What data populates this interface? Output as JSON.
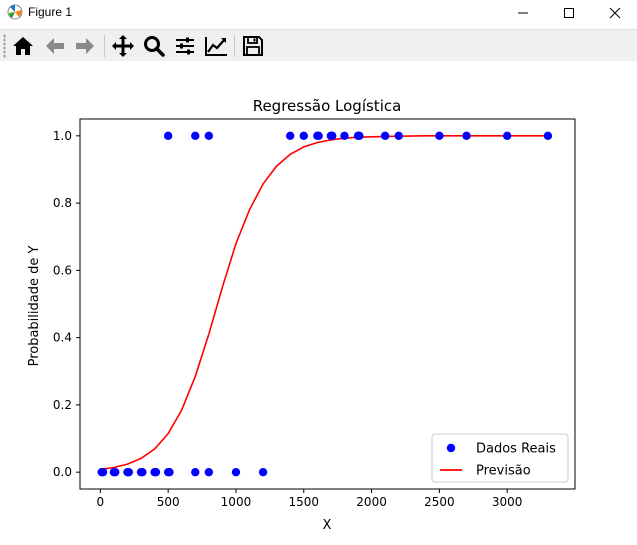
{
  "window": {
    "title": "Figure 1",
    "icon": "matplotlib-icon",
    "controls": [
      "minimize-icon",
      "maximize-icon",
      "close-icon"
    ]
  },
  "toolbar": {
    "tools": [
      "home-icon",
      "back-arrow-icon",
      "forward-arrow-icon",
      "pan-icon",
      "zoom-icon",
      "subplots-config-icon",
      "edit-axis-icon",
      "save-icon"
    ]
  },
  "chart_data": {
    "type": "scatter",
    "title": "Regressão Logística",
    "xlabel": "X",
    "ylabel": "Probabilidade de Y",
    "xlim": [
      -150,
      3500
    ],
    "ylim": [
      -0.05,
      1.05
    ],
    "xticks": [
      0,
      500,
      1000,
      1500,
      2000,
      2500,
      3000
    ],
    "yticks": [
      0.0,
      0.2,
      0.4,
      0.6,
      0.8,
      1.0
    ],
    "xtick_labels": [
      "0",
      "500",
      "1000",
      "1500",
      "2000",
      "2500",
      "3000"
    ],
    "ytick_labels": [
      "0.0",
      "0.2",
      "0.4",
      "0.6",
      "0.8",
      "1.0"
    ],
    "grid": false,
    "legend_position": "lower-right",
    "series": [
      {
        "name": "Dados Reais",
        "kind": "scatter",
        "color": "#0000ff",
        "x": [
          10,
          20,
          100,
          110,
          200,
          210,
          300,
          310,
          400,
          410,
          500,
          510,
          700,
          800,
          1000,
          1200,
          500,
          700,
          800,
          1400,
          1500,
          1600,
          1610,
          1700,
          1710,
          1800,
          1900,
          1910,
          2100,
          2200,
          2500,
          2700,
          3000,
          3300
        ],
        "y": [
          0,
          0,
          0,
          0,
          0,
          0,
          0,
          0,
          0,
          0,
          0,
          0,
          0,
          0,
          0,
          0,
          1,
          1,
          1,
          1,
          1,
          1,
          1,
          1,
          1,
          1,
          1,
          1,
          1,
          1,
          1,
          1,
          1,
          1
        ]
      },
      {
        "name": "Previsão",
        "kind": "line",
        "color": "#ff0000",
        "x": [
          0,
          100,
          200,
          300,
          400,
          500,
          600,
          700,
          800,
          900,
          1000,
          1100,
          1200,
          1300,
          1400,
          1500,
          1600,
          1700,
          1800,
          1900,
          2000,
          2200,
          2400,
          2600,
          2800,
          3000,
          3300
        ],
        "y": [
          0.008,
          0.014,
          0.024,
          0.041,
          0.069,
          0.115,
          0.185,
          0.285,
          0.41,
          0.55,
          0.68,
          0.78,
          0.857,
          0.91,
          0.945,
          0.967,
          0.98,
          0.988,
          0.993,
          0.996,
          0.997,
          0.999,
          1.0,
          1.0,
          1.0,
          1.0,
          1.0
        ]
      }
    ]
  }
}
